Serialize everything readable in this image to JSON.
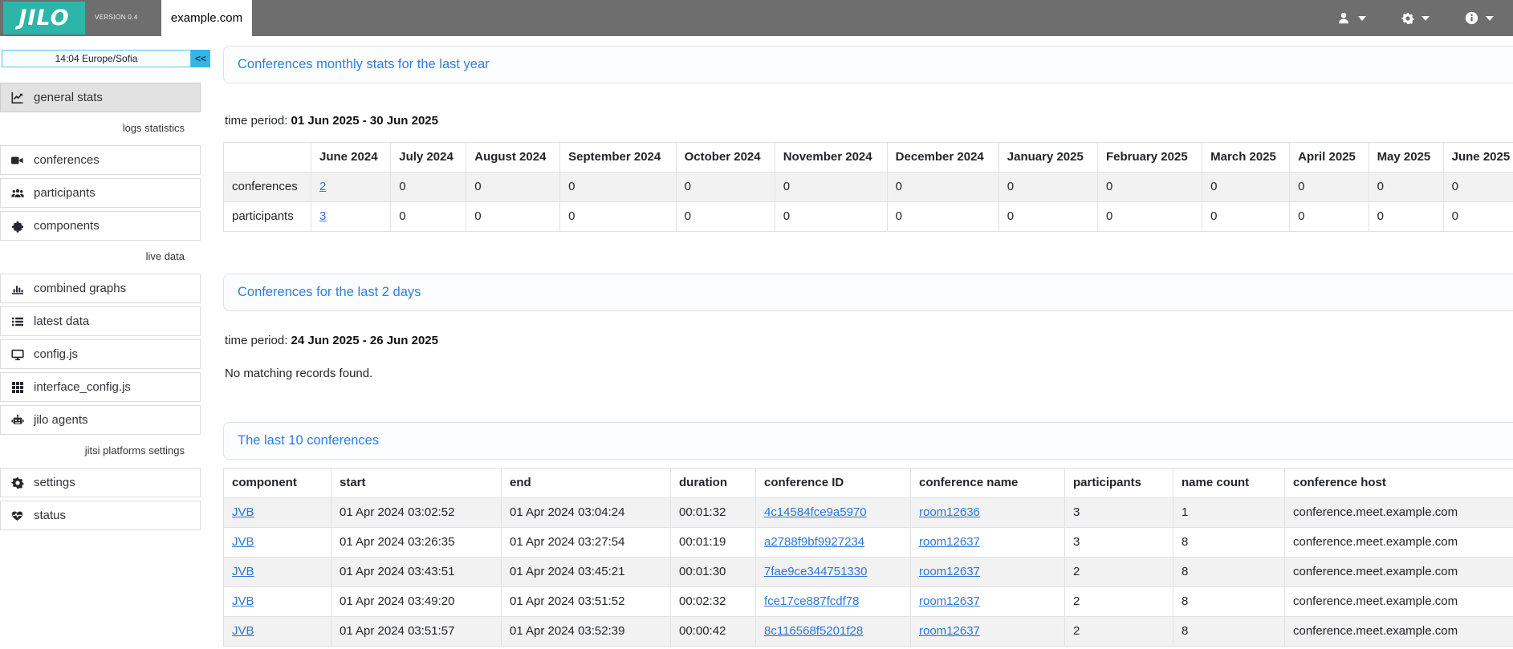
{
  "app": {
    "logo_text": "JILO",
    "version": "VERSION 0.4",
    "active_tab": "example.com"
  },
  "colors": {
    "brand_teal": "#2cb5a8",
    "header_gray": "#6e6e6e",
    "accent_cyan": "#33b5e5",
    "heading_blue": "#2f7ce0",
    "link_blue": "#2b78d4"
  },
  "header_menus": [
    {
      "icon": "user-icon"
    },
    {
      "icon": "gear-icon"
    },
    {
      "icon": "info-icon"
    }
  ],
  "sidebar": {
    "clock": "14:04  Europe/Sofia",
    "collapse_button": "<<",
    "items": [
      {
        "type": "item",
        "label": "general stats",
        "icon": "chart-line-icon",
        "active": true
      },
      {
        "type": "section",
        "label": "logs statistics"
      },
      {
        "type": "item",
        "label": "conferences",
        "icon": "video-icon"
      },
      {
        "type": "item",
        "label": "participants",
        "icon": "users-icon"
      },
      {
        "type": "item",
        "label": "components",
        "icon": "puzzle-icon"
      },
      {
        "type": "section",
        "label": "live data"
      },
      {
        "type": "item",
        "label": "combined graphs",
        "icon": "bar-chart-icon"
      },
      {
        "type": "item",
        "label": "latest data",
        "icon": "list-icon"
      },
      {
        "type": "item",
        "label": "config.js",
        "icon": "desktop-icon"
      },
      {
        "type": "item",
        "label": "interface_config.js",
        "icon": "grid-icon"
      },
      {
        "type": "item",
        "label": "jilo agents",
        "icon": "robot-icon"
      },
      {
        "type": "section",
        "label": "jitsi platforms settings"
      },
      {
        "type": "item",
        "label": "settings",
        "icon": "gear-icon"
      },
      {
        "type": "item",
        "label": "status",
        "icon": "heart-pulse-icon"
      }
    ]
  },
  "main": {
    "monthly_section": {
      "title": "Conferences monthly stats for the last year",
      "time_period_label": "time period:",
      "time_period": "01 Jun 2025 - 30 Jun 2025",
      "table": {
        "columns": [
          "",
          "June 2024",
          "July 2024",
          "August 2024",
          "September 2024",
          "October 2024",
          "November 2024",
          "December 2024",
          "January 2025",
          "February 2025",
          "March 2025",
          "April 2025",
          "May 2025",
          "June 2025"
        ],
        "rows": [
          [
            "conferences",
            {
              "text": "2",
              "link": true
            },
            "0",
            "0",
            "0",
            "0",
            "0",
            "0",
            "0",
            "0",
            "0",
            "0",
            "0",
            "0"
          ],
          [
            "participants",
            {
              "text": "3",
              "link": true
            },
            "0",
            "0",
            "0",
            "0",
            "0",
            "0",
            "0",
            "0",
            "0",
            "0",
            "0",
            "0"
          ]
        ]
      }
    },
    "recent_section": {
      "title": "Conferences for the last 2 days",
      "time_period_label": "time period:",
      "time_period": "24 Jun 2025 - 26 Jun 2025",
      "empty_message": "No matching records found."
    },
    "last_conferences_section": {
      "title": "The last 10 conferences",
      "table": {
        "columns": [
          "component",
          "start",
          "end",
          "duration",
          "conference ID",
          "conference name",
          "participants",
          "name count",
          "conference host"
        ],
        "rows": [
          [
            {
              "text": "JVB",
              "link": true
            },
            "01 Apr 2024 03:02:52",
            "01 Apr 2024 03:04:24",
            "00:01:32",
            {
              "text": "4c14584fce9a5970",
              "link": true
            },
            {
              "text": "room12636",
              "link": true
            },
            "3",
            "1",
            "conference.meet.example.com"
          ],
          [
            {
              "text": "JVB",
              "link": true
            },
            "01 Apr 2024 03:26:35",
            "01 Apr 2024 03:27:54",
            "00:01:19",
            {
              "text": "a2788f9bf9927234",
              "link": true
            },
            {
              "text": "room12637",
              "link": true
            },
            "3",
            "8",
            "conference.meet.example.com"
          ],
          [
            {
              "text": "JVB",
              "link": true
            },
            "01 Apr 2024 03:43:51",
            "01 Apr 2024 03:45:21",
            "00:01:30",
            {
              "text": "7fae9ce344751330",
              "link": true
            },
            {
              "text": "room12637",
              "link": true
            },
            "2",
            "8",
            "conference.meet.example.com"
          ],
          [
            {
              "text": "JVB",
              "link": true
            },
            "01 Apr 2024 03:49:20",
            "01 Apr 2024 03:51:52",
            "00:02:32",
            {
              "text": "fce17ce887fcdf78",
              "link": true
            },
            {
              "text": "room12637",
              "link": true
            },
            "2",
            "8",
            "conference.meet.example.com"
          ],
          [
            {
              "text": "JVB",
              "link": true
            },
            "01 Apr 2024 03:51:57",
            "01 Apr 2024 03:52:39",
            "00:00:42",
            {
              "text": "8c116568f5201f28",
              "link": true
            },
            {
              "text": "room12637",
              "link": true
            },
            "2",
            "8",
            "conference.meet.example.com"
          ]
        ]
      }
    }
  }
}
